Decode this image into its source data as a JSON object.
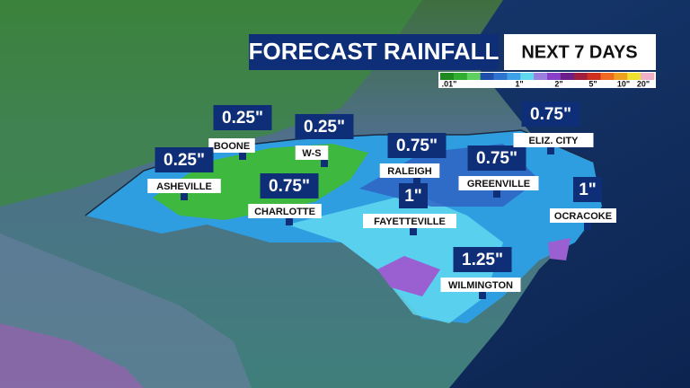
{
  "header": {
    "title": "FORECAST RAINFALL",
    "subtitle": "NEXT 7 DAYS"
  },
  "legend": {
    "colors": [
      "#1f8a1f",
      "#2fae2f",
      "#5fd05f",
      "#1f4fa8",
      "#2f73d0",
      "#3ea0e8",
      "#5fd8f0",
      "#9a7fe0",
      "#8a3fc8",
      "#6a1f8a",
      "#a01f3f",
      "#d02f1f",
      "#f06a1f",
      "#f0a01f",
      "#f0e02f",
      "#f0b0c8"
    ],
    "labels": [
      ".01\"",
      "1\"",
      "2\"",
      "5\"",
      "10\"",
      "20\""
    ]
  },
  "cities": [
    {
      "name": "BOONE",
      "amount": "0.25\""
    },
    {
      "name": "W-S",
      "amount": "0.25\""
    },
    {
      "name": "ASHEVILLE",
      "amount": "0.25\""
    },
    {
      "name": "CHARLOTTE",
      "amount": "0.75\""
    },
    {
      "name": "RALEIGH",
      "amount": "0.75\""
    },
    {
      "name": "GREENVILLE",
      "amount": "0.75\""
    },
    {
      "name": "FAYETTEVILLE",
      "amount": "1\""
    },
    {
      "name": "ELIZ. CITY",
      "amount": "0.75\""
    },
    {
      "name": "OCRACOKE",
      "amount": "1\""
    },
    {
      "name": "WILMINGTON",
      "amount": "1.25\""
    }
  ]
}
